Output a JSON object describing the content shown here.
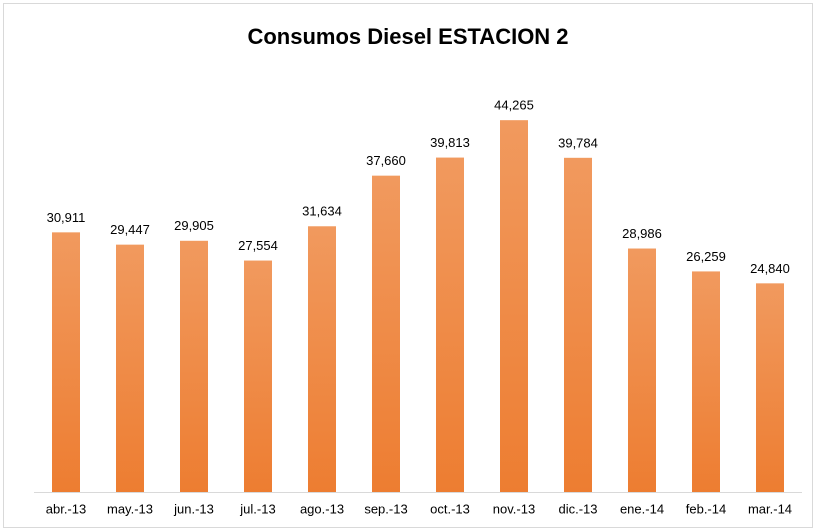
{
  "chart_data": {
    "type": "bar",
    "title": "Consumos Diesel ESTACION 2",
    "categories": [
      "abr.-13",
      "may.-13",
      "jun.-13",
      "jul.-13",
      "ago.-13",
      "sep.-13",
      "oct.-13",
      "nov.-13",
      "dic.-13",
      "ene.-14",
      "feb.-14",
      "mar.-14"
    ],
    "values": [
      30911,
      29447,
      29905,
      27554,
      31634,
      37660,
      39813,
      44265,
      39784,
      28986,
      26259,
      24840
    ],
    "value_labels": [
      "30,911",
      "29,447",
      "29,905",
      "27,554",
      "31,634",
      "37,660",
      "39,813",
      "44,265",
      "39,784",
      "28,986",
      "26,259",
      "24,840"
    ],
    "color": "#ed7d31",
    "ylim": [
      0,
      50000
    ]
  }
}
